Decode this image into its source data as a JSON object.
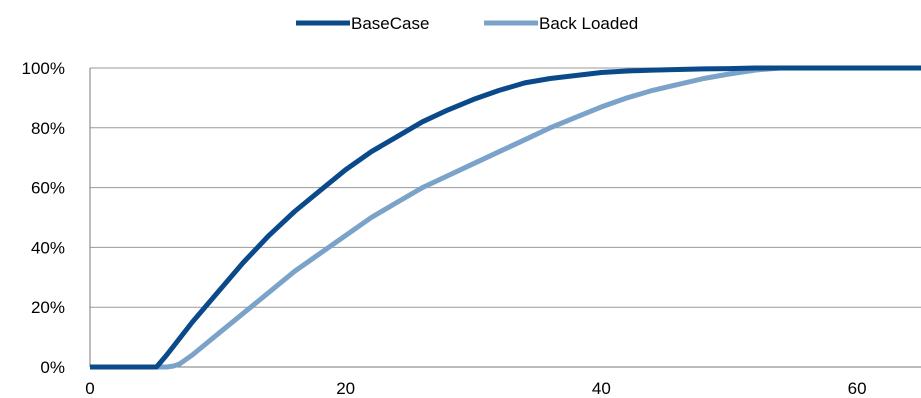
{
  "chart_data": {
    "type": "line",
    "title": "",
    "xlabel": "",
    "ylabel": "",
    "xlim": [
      0,
      65
    ],
    "ylim": [
      0,
      100
    ],
    "x_ticks": [
      0,
      20,
      40,
      60
    ],
    "y_ticks": [
      0,
      20,
      40,
      60,
      80,
      100
    ],
    "x_tick_labels": [
      "0",
      "20",
      "40",
      "60"
    ],
    "y_tick_labels": [
      "0%",
      "20%",
      "40%",
      "60%",
      "80%",
      "100%"
    ],
    "grid": "horizontal",
    "legend_position": "top-center",
    "series": [
      {
        "name": "BaseCase",
        "color": "#0a4a8a",
        "x": [
          0,
          5,
          5.2,
          6,
          8,
          10,
          12,
          14,
          16,
          18,
          20,
          22,
          24,
          26,
          28,
          30,
          32,
          34,
          36,
          38,
          40,
          42,
          44,
          46,
          48,
          50,
          52,
          54,
          56,
          58,
          60,
          62,
          65
        ],
        "y": [
          0,
          0,
          0,
          4,
          15,
          25,
          35,
          44,
          52,
          59,
          66,
          72,
          77,
          82,
          86,
          89.5,
          92.5,
          95,
          96.5,
          97.5,
          98.5,
          99,
          99.3,
          99.5,
          99.7,
          99.8,
          100,
          100,
          100,
          100,
          100,
          100,
          100
        ]
      },
      {
        "name": "Back Loaded",
        "color": "#7ba3c9",
        "x": [
          0,
          6,
          6.5,
          7,
          8,
          10,
          12,
          14,
          16,
          18,
          20,
          22,
          24,
          26,
          28,
          30,
          32,
          34,
          36,
          38,
          40,
          42,
          44,
          46,
          48,
          50,
          52,
          54,
          56,
          58,
          60,
          62,
          65
        ],
        "y": [
          0,
          0,
          0.3,
          1,
          4,
          11,
          18,
          25,
          32,
          38,
          44,
          50,
          55,
          60,
          64,
          68,
          72,
          76,
          80,
          83.5,
          87,
          90,
          92.5,
          94.5,
          96.5,
          98,
          99.3,
          100,
          100,
          100,
          100,
          100,
          100
        ]
      }
    ]
  }
}
